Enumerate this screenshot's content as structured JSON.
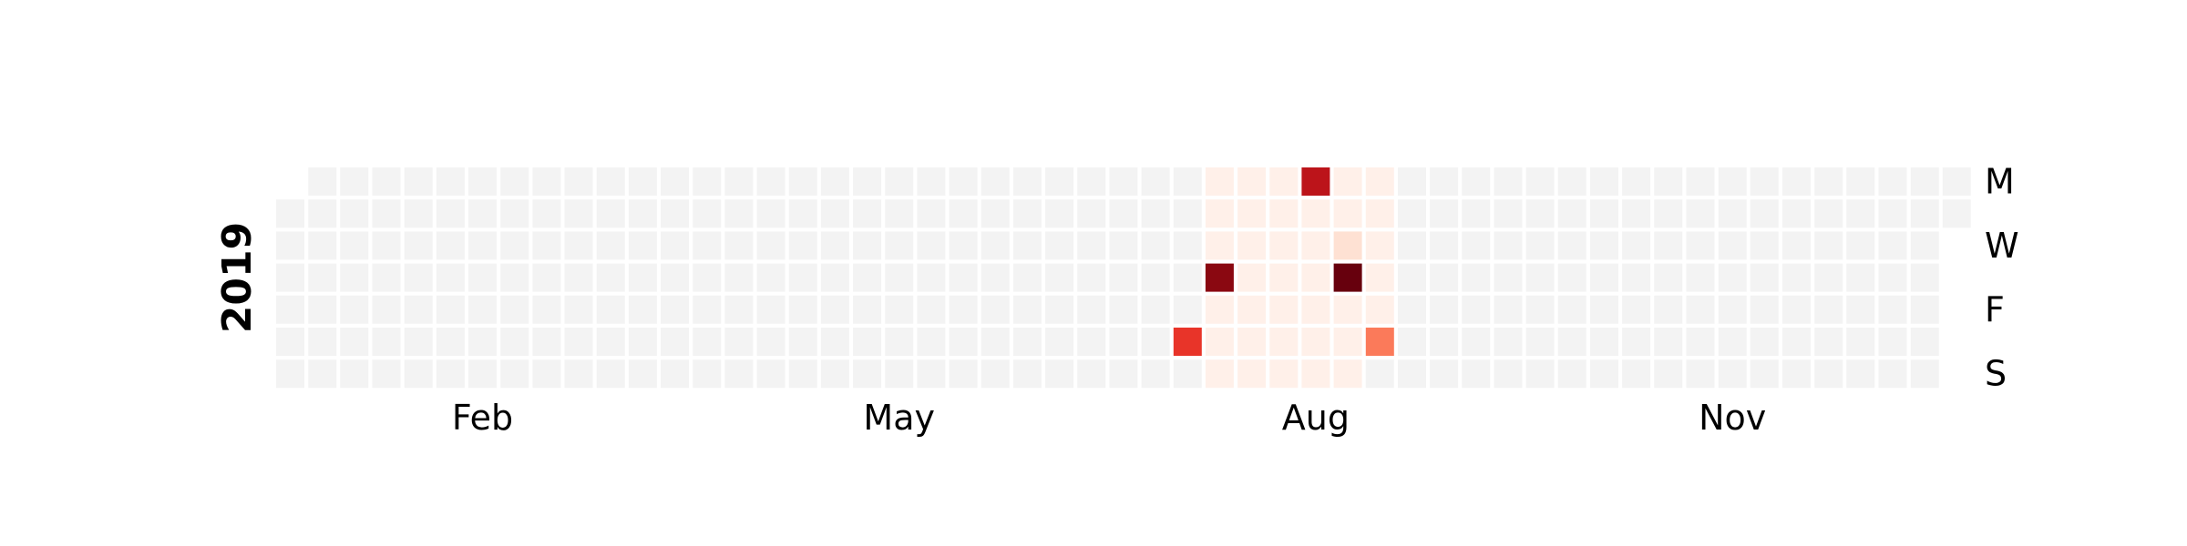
{
  "chart_data": {
    "type": "heatmap",
    "year": "2019",
    "first_day": "2019-01-01",
    "last_day": "2019-12-31",
    "row_labels": [
      "M",
      "W",
      "F",
      "S"
    ],
    "month_labels": [
      "Feb",
      "May",
      "Aug",
      "Nov"
    ],
    "colormap": "Reds",
    "fill_color": "#f3f3f3",
    "data_range": {
      "start": "2019-07-22",
      "end": "2019-08-30",
      "min": 0,
      "max": 10
    },
    "default_value": 0.3,
    "highlights": [
      {
        "date": "2019-07-20",
        "value": 6.5
      },
      {
        "date": "2019-07-25",
        "value": 9.3
      },
      {
        "date": "2019-08-12",
        "value": 8.0
      },
      {
        "date": "2019-08-21",
        "value": 1.2
      },
      {
        "date": "2019-08-22",
        "value": 10.0
      },
      {
        "date": "2019-08-31",
        "value": 4.5
      }
    ]
  }
}
